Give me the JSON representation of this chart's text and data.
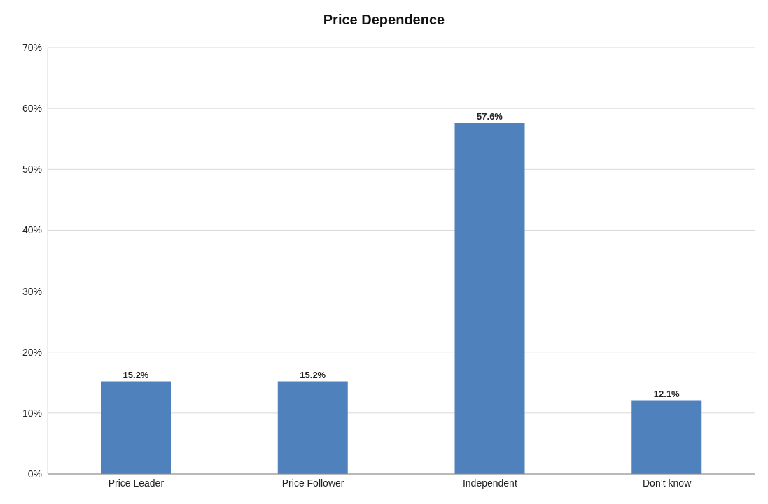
{
  "chart_data": {
    "type": "bar",
    "title": "Price Dependence",
    "categories": [
      "Price Leader",
      "Price Follower",
      "Independent",
      "Don’t know"
    ],
    "values": [
      15.2,
      15.2,
      57.6,
      12.1
    ],
    "value_labels": [
      "15.2%",
      "15.2%",
      "57.6%",
      "12.1%"
    ],
    "color": "#4f81bd",
    "ylim": [
      0,
      70
    ],
    "yticks": [
      {
        "value": 0,
        "label": "0%"
      },
      {
        "value": 10,
        "label": "10%"
      },
      {
        "value": 20,
        "label": "20%"
      },
      {
        "value": 30,
        "label": "30%"
      },
      {
        "value": 40,
        "label": "40%"
      },
      {
        "value": 50,
        "label": "50%"
      },
      {
        "value": 60,
        "label": "60%"
      },
      {
        "value": 70,
        "label": "70%"
      }
    ],
    "grid": "y",
    "legend": false
  }
}
